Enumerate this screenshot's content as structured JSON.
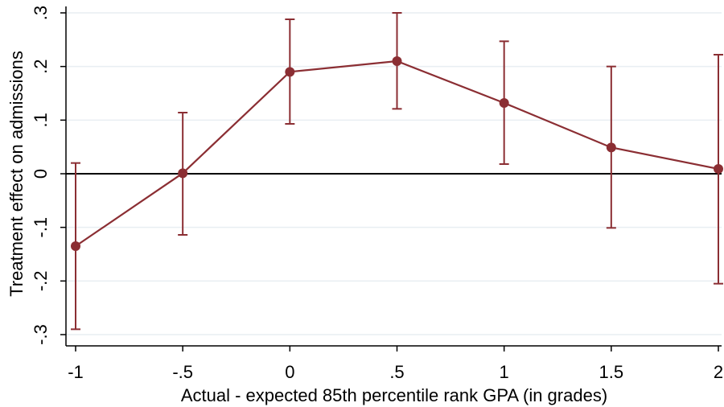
{
  "chart_data": {
    "type": "line",
    "title": "",
    "xlabel": "Actual - expected 85th percentile rank GPA (in grades)",
    "ylabel": "Treatment effect on admissions",
    "xlim": [
      -1,
      2
    ],
    "ylim": [
      -0.3,
      0.3
    ],
    "x_ticks": [
      -1,
      -0.5,
      0,
      0.5,
      1,
      1.5,
      2
    ],
    "x_tick_labels": [
      "-1",
      "-.5",
      "0",
      ".5",
      "1",
      "1.5",
      "2"
    ],
    "y_ticks": [
      -0.3,
      -0.2,
      -0.1,
      0,
      0.1,
      0.2,
      0.3
    ],
    "y_tick_labels": [
      "-.3",
      "-.2",
      "-.1",
      "0",
      ".1",
      ".2",
      ".3"
    ],
    "grid": true,
    "reference_line_y": 0,
    "series": [
      {
        "x": [
          -1,
          -0.5,
          0,
          0.5,
          1,
          1.5,
          2
        ],
        "values": [
          -0.135,
          0.001,
          0.19,
          0.21,
          0.132,
          0.049,
          0.009
        ],
        "ci_low": [
          -0.29,
          -0.114,
          0.093,
          0.121,
          0.018,
          -0.101,
          -0.205
        ],
        "ci_high": [
          0.02,
          0.114,
          0.288,
          0.3,
          0.247,
          0.2,
          0.222
        ],
        "color": "#8b2e33"
      }
    ]
  }
}
